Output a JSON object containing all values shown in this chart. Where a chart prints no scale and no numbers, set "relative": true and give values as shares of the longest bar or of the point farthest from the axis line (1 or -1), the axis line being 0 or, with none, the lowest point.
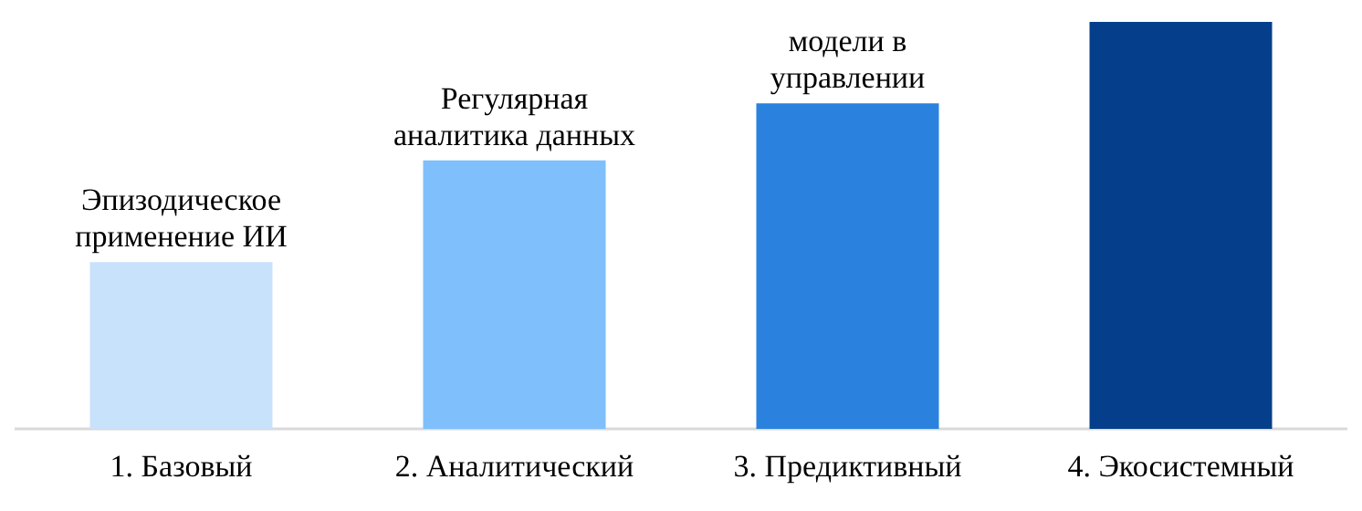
{
  "chart_data": {
    "type": "bar",
    "categories": [
      "1. Базовый",
      "2. Аналитический",
      "3. Предиктивный",
      "4. Экосистемный"
    ],
    "values": [
      0.41,
      0.66,
      0.8,
      1
    ],
    "colors": [
      "#c9e2fb",
      "#7fbffc",
      "#2b82de",
      "#053f8c"
    ],
    "relative": true,
    "grid": false,
    "annotations": [
      {
        "text": "Эпизодическое\nприменение ИИ",
        "x": "1. Базовый",
        "y": 0.41
      },
      {
        "text": "Регулярная\nаналитика данных",
        "x": "2. Аналитический",
        "y": 0.66
      },
      {
        "text": "модели в\nуправлении",
        "x": "3. Предиктивный",
        "y": 0.8
      }
    ]
  }
}
